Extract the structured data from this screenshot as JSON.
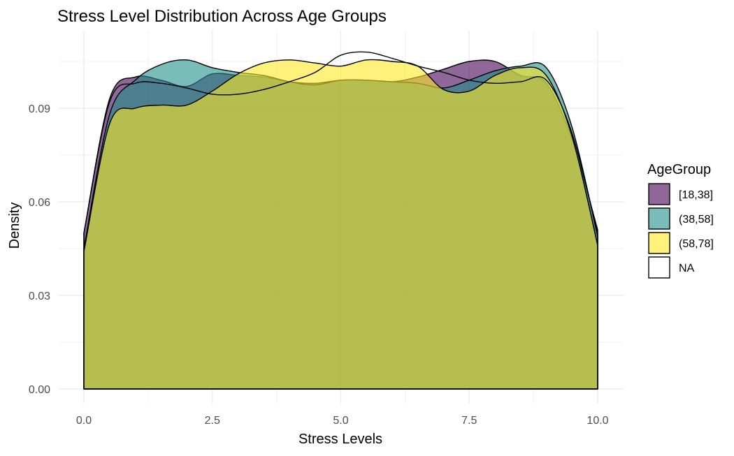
{
  "chart_data": {
    "type": "area",
    "subtype": "density",
    "title": "Stress Level Distribution Across Age Groups",
    "xlabel": "Stress Levels",
    "ylabel": "Density",
    "xlim": [
      0,
      10
    ],
    "ylim": [
      0,
      0.1
    ],
    "x_ticks": [
      0,
      2.5,
      5,
      7.5,
      10
    ],
    "x_tick_labels": [
      "0.0",
      "2.5",
      "5.0",
      "7.5",
      "10.0"
    ],
    "y_ticks": [
      0,
      0.03,
      0.06,
      0.09
    ],
    "y_tick_labels": [
      "0.00",
      "0.03",
      "0.06",
      "0.09"
    ],
    "grid": true,
    "legend": {
      "title": "AgeGroup",
      "position": "right"
    },
    "x": [
      0,
      0.5,
      1,
      1.5,
      2,
      2.5,
      3,
      3.5,
      4,
      4.5,
      5,
      5.5,
      6,
      6.5,
      7,
      7.5,
      8,
      8.5,
      9,
      9.5,
      10
    ],
    "series": [
      {
        "name": "[18,38]",
        "color": "#440154",
        "values": [
          0.05,
          0.093,
          0.1,
          0.099,
          0.097,
          0.101,
          0.1005,
          0.1,
          0.0985,
          0.098,
          0.099,
          0.099,
          0.0985,
          0.1,
          0.1025,
          0.105,
          0.105,
          0.1005,
          0.098,
          0.08,
          0.051
        ]
      },
      {
        "name": "(38,58]",
        "color": "#21908C",
        "values": [
          0.045,
          0.088,
          0.099,
          0.104,
          0.1055,
          0.103,
          0.1015,
          0.1005,
          0.0985,
          0.0975,
          0.099,
          0.099,
          0.0985,
          0.098,
          0.0965,
          0.099,
          0.102,
          0.1035,
          0.103,
          0.084,
          0.049
        ]
      },
      {
        "name": "(58,78]",
        "color": "#FDE725",
        "values": [
          0.044,
          0.085,
          0.09,
          0.091,
          0.091,
          0.0955,
          0.101,
          0.1045,
          0.1055,
          0.1045,
          0.1035,
          0.1055,
          0.105,
          0.1035,
          0.096,
          0.0955,
          0.1005,
          0.103,
          0.1005,
          0.081,
          0.046
        ]
      },
      {
        "name": "NA",
        "color": null,
        "values": [
          0.05,
          0.092,
          0.098,
          0.098,
          0.0965,
          0.0945,
          0.0945,
          0.096,
          0.0985,
          0.1015,
          0.107,
          0.108,
          0.106,
          0.1035,
          0.1015,
          0.099,
          0.098,
          0.0985,
          0.099,
          0.082,
          0.05
        ]
      }
    ]
  }
}
